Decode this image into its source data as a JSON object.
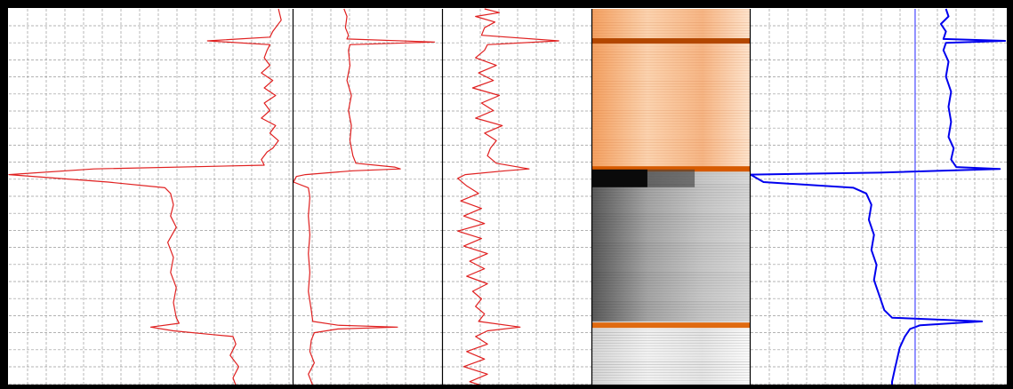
{
  "chart_data": {
    "type": "line",
    "tracks": [
      {
        "name": "",
        "kind": "curve",
        "color": "#e02020",
        "grid": true,
        "points": [
          [
            0.95,
            0.0
          ],
          [
            0.96,
            0.03
          ],
          [
            0.93,
            0.06
          ],
          [
            0.92,
            0.075
          ],
          [
            0.7,
            0.085
          ],
          [
            0.92,
            0.095
          ],
          [
            0.91,
            0.11
          ],
          [
            0.9,
            0.13
          ],
          [
            0.92,
            0.15
          ],
          [
            0.89,
            0.17
          ],
          [
            0.93,
            0.19
          ],
          [
            0.9,
            0.21
          ],
          [
            0.94,
            0.23
          ],
          [
            0.9,
            0.25
          ],
          [
            0.92,
            0.27
          ],
          [
            0.89,
            0.29
          ],
          [
            0.94,
            0.31
          ],
          [
            0.92,
            0.33
          ],
          [
            0.95,
            0.35
          ],
          [
            0.93,
            0.37
          ],
          [
            0.91,
            0.38
          ],
          [
            0.89,
            0.4
          ],
          [
            0.9,
            0.415
          ],
          [
            0.3,
            0.425
          ],
          [
            0.0,
            0.44
          ],
          [
            0.35,
            0.46
          ],
          [
            0.55,
            0.475
          ],
          [
            0.57,
            0.49
          ],
          [
            0.58,
            0.52
          ],
          [
            0.57,
            0.55
          ],
          [
            0.59,
            0.58
          ],
          [
            0.56,
            0.62
          ],
          [
            0.58,
            0.66
          ],
          [
            0.57,
            0.7
          ],
          [
            0.59,
            0.74
          ],
          [
            0.58,
            0.78
          ],
          [
            0.59,
            0.82
          ],
          [
            0.6,
            0.835
          ],
          [
            0.5,
            0.845
          ],
          [
            0.58,
            0.855
          ],
          [
            0.72,
            0.865
          ],
          [
            0.79,
            0.87
          ],
          [
            0.8,
            0.89
          ],
          [
            0.78,
            0.92
          ],
          [
            0.81,
            0.95
          ],
          [
            0.79,
            0.98
          ],
          [
            0.8,
            1.0
          ]
        ]
      },
      {
        "name": "",
        "kind": "curve",
        "color": "#e02020",
        "grid": true,
        "points": [
          [
            0.34,
            0.0
          ],
          [
            0.36,
            0.02
          ],
          [
            0.35,
            0.05
          ],
          [
            0.37,
            0.07
          ],
          [
            0.36,
            0.08
          ],
          [
            0.95,
            0.088
          ],
          [
            0.38,
            0.095
          ],
          [
            0.37,
            0.11
          ],
          [
            0.38,
            0.15
          ],
          [
            0.36,
            0.19
          ],
          [
            0.39,
            0.23
          ],
          [
            0.37,
            0.27
          ],
          [
            0.39,
            0.31
          ],
          [
            0.38,
            0.35
          ],
          [
            0.4,
            0.39
          ],
          [
            0.42,
            0.41
          ],
          [
            0.68,
            0.42
          ],
          [
            0.72,
            0.425
          ],
          [
            0.4,
            0.43
          ],
          [
            0.08,
            0.44
          ],
          [
            0.02,
            0.445
          ],
          [
            0.0,
            0.46
          ],
          [
            0.1,
            0.475
          ],
          [
            0.11,
            0.5
          ],
          [
            0.1,
            0.55
          ],
          [
            0.11,
            0.6
          ],
          [
            0.1,
            0.65
          ],
          [
            0.11,
            0.7
          ],
          [
            0.1,
            0.75
          ],
          [
            0.12,
            0.8
          ],
          [
            0.13,
            0.83
          ],
          [
            0.3,
            0.84
          ],
          [
            0.7,
            0.845
          ],
          [
            0.3,
            0.85
          ],
          [
            0.14,
            0.86
          ],
          [
            0.12,
            0.88
          ],
          [
            0.11,
            0.91
          ],
          [
            0.14,
            0.94
          ],
          [
            0.1,
            0.97
          ],
          [
            0.13,
            1.0
          ]
        ]
      },
      {
        "name": "",
        "kind": "curve",
        "color": "#e02020",
        "grid": true,
        "points": [
          [
            0.28,
            0.0
          ],
          [
            0.38,
            0.01
          ],
          [
            0.22,
            0.02
          ],
          [
            0.35,
            0.035
          ],
          [
            0.28,
            0.05
          ],
          [
            0.26,
            0.07
          ],
          [
            0.78,
            0.085
          ],
          [
            0.3,
            0.095
          ],
          [
            0.28,
            0.11
          ],
          [
            0.22,
            0.13
          ],
          [
            0.36,
            0.15
          ],
          [
            0.24,
            0.17
          ],
          [
            0.34,
            0.19
          ],
          [
            0.2,
            0.21
          ],
          [
            0.38,
            0.23
          ],
          [
            0.26,
            0.25
          ],
          [
            0.34,
            0.27
          ],
          [
            0.22,
            0.29
          ],
          [
            0.4,
            0.31
          ],
          [
            0.28,
            0.33
          ],
          [
            0.36,
            0.35
          ],
          [
            0.32,
            0.37
          ],
          [
            0.3,
            0.39
          ],
          [
            0.36,
            0.41
          ],
          [
            0.58,
            0.425
          ],
          [
            0.42,
            0.43
          ],
          [
            0.15,
            0.44
          ],
          [
            0.1,
            0.45
          ],
          [
            0.16,
            0.47
          ],
          [
            0.24,
            0.49
          ],
          [
            0.12,
            0.51
          ],
          [
            0.26,
            0.53
          ],
          [
            0.14,
            0.55
          ],
          [
            0.28,
            0.57
          ],
          [
            0.1,
            0.59
          ],
          [
            0.26,
            0.61
          ],
          [
            0.14,
            0.63
          ],
          [
            0.3,
            0.65
          ],
          [
            0.18,
            0.67
          ],
          [
            0.28,
            0.69
          ],
          [
            0.16,
            0.71
          ],
          [
            0.3,
            0.73
          ],
          [
            0.2,
            0.75
          ],
          [
            0.26,
            0.77
          ],
          [
            0.22,
            0.79
          ],
          [
            0.28,
            0.81
          ],
          [
            0.24,
            0.83
          ],
          [
            0.52,
            0.845
          ],
          [
            0.3,
            0.855
          ],
          [
            0.22,
            0.87
          ],
          [
            0.3,
            0.89
          ],
          [
            0.16,
            0.91
          ],
          [
            0.28,
            0.93
          ],
          [
            0.14,
            0.95
          ],
          [
            0.3,
            0.97
          ],
          [
            0.18,
            0.99
          ],
          [
            0.26,
            1.0
          ]
        ]
      },
      {
        "name": "",
        "kind": "image",
        "grid": false,
        "zones": [
          {
            "from": 0.0,
            "to": 0.43,
            "tone": "orange"
          },
          {
            "from": 0.43,
            "to": 0.83,
            "tone": "gray"
          },
          {
            "from": 0.83,
            "to": 1.0,
            "tone": "light"
          }
        ],
        "bands": [
          {
            "at": 0.085,
            "color": "#b34700"
          },
          {
            "at": 0.425,
            "color": "#d65a00"
          },
          {
            "at": 0.45,
            "color": "#000000"
          },
          {
            "at": 0.84,
            "color": "#e06a10"
          }
        ]
      },
      {
        "name": "",
        "kind": "curve",
        "color": "#0000ee",
        "grid": true,
        "cutoff": 0.64,
        "points": [
          [
            0.76,
            0.0
          ],
          [
            0.77,
            0.02
          ],
          [
            0.74,
            0.04
          ],
          [
            0.76,
            0.06
          ],
          [
            0.75,
            0.08
          ],
          [
            0.99,
            0.085
          ],
          [
            0.76,
            0.09
          ],
          [
            0.75,
            0.11
          ],
          [
            0.77,
            0.14
          ],
          [
            0.76,
            0.18
          ],
          [
            0.78,
            0.22
          ],
          [
            0.77,
            0.26
          ],
          [
            0.78,
            0.3
          ],
          [
            0.77,
            0.34
          ],
          [
            0.79,
            0.37
          ],
          [
            0.78,
            0.4
          ],
          [
            0.8,
            0.42
          ],
          [
            0.97,
            0.425
          ],
          [
            0.5,
            0.435
          ],
          [
            0.0,
            0.44
          ],
          [
            0.05,
            0.46
          ],
          [
            0.4,
            0.475
          ],
          [
            0.45,
            0.49
          ],
          [
            0.47,
            0.52
          ],
          [
            0.46,
            0.56
          ],
          [
            0.48,
            0.6
          ],
          [
            0.47,
            0.64
          ],
          [
            0.49,
            0.68
          ],
          [
            0.48,
            0.72
          ],
          [
            0.5,
            0.76
          ],
          [
            0.52,
            0.8
          ],
          [
            0.55,
            0.82
          ],
          [
            0.9,
            0.83
          ],
          [
            0.66,
            0.84
          ],
          [
            0.62,
            0.85
          ],
          [
            0.6,
            0.87
          ],
          [
            0.58,
            0.9
          ],
          [
            0.57,
            0.93
          ],
          [
            0.56,
            0.96
          ],
          [
            0.55,
            0.99
          ],
          [
            0.55,
            1.0
          ]
        ]
      }
    ]
  }
}
